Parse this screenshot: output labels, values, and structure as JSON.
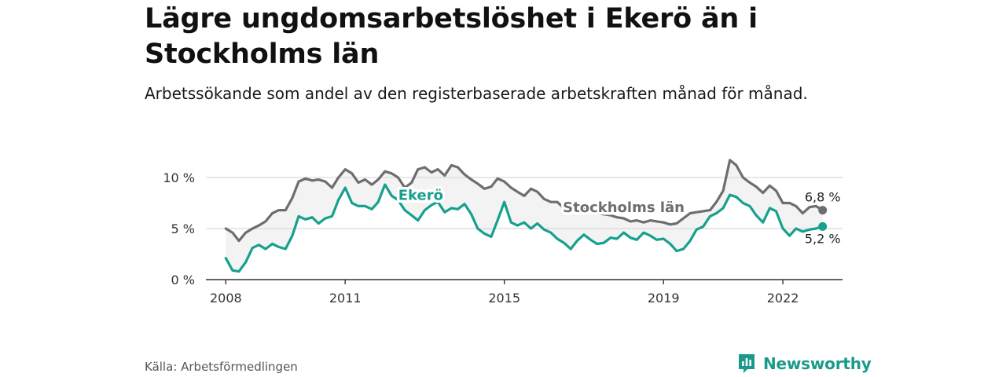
{
  "title": "Lägre ungdomsarbetslöshet i Ekerö än i Stockholms län",
  "subtitle": "Arbetssökande som andel av den registerbaserade arbetskraften månad för månad.",
  "source": "Källa: Arbetsförmedlingen",
  "brand": "Newsworthy",
  "colors": {
    "ekero": "#17a08e",
    "stockholm": "#6d6d72",
    "band": "#f3f3f3",
    "grid": "#d9d9d9",
    "axis": "#333333",
    "brand": "#1a9a8b"
  },
  "chart_data": {
    "type": "line",
    "title": "Lägre ungdomsarbetslöshet i Ekerö än i Stockholms län",
    "xlabel": "",
    "ylabel": "",
    "x_range": [
      2007.5,
      2023.5
    ],
    "ylim": [
      0,
      12
    ],
    "y_ticks": [
      {
        "value": 0,
        "label": "0 %"
      },
      {
        "value": 5,
        "label": "5 %"
      },
      {
        "value": 10,
        "label": "10 %"
      }
    ],
    "x_ticks": [
      {
        "value": 2008,
        "label": "2008"
      },
      {
        "value": 2011,
        "label": "2011"
      },
      {
        "value": 2015,
        "label": "2015"
      },
      {
        "value": 2019,
        "label": "2019"
      },
      {
        "value": 2022,
        "label": "2022"
      }
    ],
    "series": [
      {
        "name": "Stockholms län",
        "color_key": "stockholm",
        "end_label": "6,8 %",
        "points": [
          [
            2008.0,
            5.0
          ],
          [
            2008.17,
            4.6
          ],
          [
            2008.33,
            3.8
          ],
          [
            2008.5,
            4.6
          ],
          [
            2008.67,
            5.0
          ],
          [
            2008.83,
            5.3
          ],
          [
            2009.0,
            5.7
          ],
          [
            2009.17,
            6.5
          ],
          [
            2009.33,
            6.8
          ],
          [
            2009.5,
            6.8
          ],
          [
            2009.67,
            8.0
          ],
          [
            2009.83,
            9.6
          ],
          [
            2010.0,
            9.9
          ],
          [
            2010.17,
            9.7
          ],
          [
            2010.33,
            9.8
          ],
          [
            2010.5,
            9.6
          ],
          [
            2010.67,
            9.0
          ],
          [
            2010.83,
            10.0
          ],
          [
            2011.0,
            10.8
          ],
          [
            2011.17,
            10.4
          ],
          [
            2011.33,
            9.5
          ],
          [
            2011.5,
            9.8
          ],
          [
            2011.67,
            9.3
          ],
          [
            2011.83,
            9.8
          ],
          [
            2012.0,
            10.6
          ],
          [
            2012.17,
            10.4
          ],
          [
            2012.33,
            10.0
          ],
          [
            2012.5,
            9.0
          ],
          [
            2012.67,
            9.5
          ],
          [
            2012.83,
            10.8
          ],
          [
            2013.0,
            11.0
          ],
          [
            2013.17,
            10.5
          ],
          [
            2013.33,
            10.8
          ],
          [
            2013.5,
            10.2
          ],
          [
            2013.67,
            11.2
          ],
          [
            2013.83,
            11.0
          ],
          [
            2014.0,
            10.3
          ],
          [
            2014.17,
            9.8
          ],
          [
            2014.33,
            9.4
          ],
          [
            2014.5,
            8.9
          ],
          [
            2014.67,
            9.1
          ],
          [
            2014.83,
            9.9
          ],
          [
            2015.0,
            9.6
          ],
          [
            2015.17,
            9.0
          ],
          [
            2015.33,
            8.6
          ],
          [
            2015.5,
            8.2
          ],
          [
            2015.67,
            8.9
          ],
          [
            2015.83,
            8.6
          ],
          [
            2016.0,
            7.9
          ],
          [
            2016.17,
            7.6
          ],
          [
            2016.33,
            7.6
          ],
          [
            2016.5,
            7.0
          ],
          [
            2016.67,
            6.7
          ],
          [
            2016.83,
            6.8
          ],
          [
            2017.0,
            6.9
          ],
          [
            2017.17,
            6.7
          ],
          [
            2017.33,
            6.5
          ],
          [
            2017.5,
            6.4
          ],
          [
            2017.67,
            6.3
          ],
          [
            2017.83,
            6.1
          ],
          [
            2018.0,
            6.0
          ],
          [
            2018.17,
            5.7
          ],
          [
            2018.33,
            5.8
          ],
          [
            2018.5,
            5.6
          ],
          [
            2018.67,
            5.8
          ],
          [
            2018.83,
            5.7
          ],
          [
            2019.0,
            5.6
          ],
          [
            2019.17,
            5.4
          ],
          [
            2019.33,
            5.5
          ],
          [
            2019.5,
            6.0
          ],
          [
            2019.67,
            6.5
          ],
          [
            2019.83,
            6.6
          ],
          [
            2020.0,
            6.7
          ],
          [
            2020.17,
            6.8
          ],
          [
            2020.33,
            7.6
          ],
          [
            2020.5,
            8.7
          ],
          [
            2020.67,
            11.7
          ],
          [
            2020.83,
            11.2
          ],
          [
            2021.0,
            10.0
          ],
          [
            2021.17,
            9.5
          ],
          [
            2021.33,
            9.1
          ],
          [
            2021.5,
            8.5
          ],
          [
            2021.67,
            9.2
          ],
          [
            2021.83,
            8.7
          ],
          [
            2022.0,
            7.5
          ],
          [
            2022.17,
            7.5
          ],
          [
            2022.33,
            7.2
          ],
          [
            2022.5,
            6.5
          ],
          [
            2022.67,
            7.1
          ],
          [
            2022.83,
            7.2
          ],
          [
            2023.0,
            6.8
          ]
        ]
      },
      {
        "name": "Ekerö",
        "color_key": "ekero",
        "end_label": "5,2 %",
        "points": [
          [
            2008.0,
            2.1
          ],
          [
            2008.17,
            0.9
          ],
          [
            2008.33,
            0.8
          ],
          [
            2008.5,
            1.7
          ],
          [
            2008.67,
            3.1
          ],
          [
            2008.83,
            3.4
          ],
          [
            2009.0,
            3.0
          ],
          [
            2009.17,
            3.5
          ],
          [
            2009.33,
            3.2
          ],
          [
            2009.5,
            3.0
          ],
          [
            2009.67,
            4.3
          ],
          [
            2009.83,
            6.2
          ],
          [
            2010.0,
            5.9
          ],
          [
            2010.17,
            6.1
          ],
          [
            2010.33,
            5.5
          ],
          [
            2010.5,
            6.0
          ],
          [
            2010.67,
            6.2
          ],
          [
            2010.83,
            7.8
          ],
          [
            2011.0,
            9.0
          ],
          [
            2011.17,
            7.5
          ],
          [
            2011.33,
            7.2
          ],
          [
            2011.5,
            7.2
          ],
          [
            2011.67,
            6.9
          ],
          [
            2011.83,
            7.6
          ],
          [
            2012.0,
            9.3
          ],
          [
            2012.17,
            8.2
          ],
          [
            2012.33,
            7.8
          ],
          [
            2012.5,
            6.8
          ],
          [
            2012.67,
            6.3
          ],
          [
            2012.83,
            5.8
          ],
          [
            2013.0,
            6.8
          ],
          [
            2013.17,
            7.3
          ],
          [
            2013.33,
            7.6
          ],
          [
            2013.5,
            6.6
          ],
          [
            2013.67,
            7.0
          ],
          [
            2013.83,
            6.9
          ],
          [
            2014.0,
            7.4
          ],
          [
            2014.17,
            6.4
          ],
          [
            2014.33,
            5.0
          ],
          [
            2014.5,
            4.5
          ],
          [
            2014.67,
            4.2
          ],
          [
            2014.83,
            5.8
          ],
          [
            2015.0,
            7.6
          ],
          [
            2015.17,
            5.6
          ],
          [
            2015.33,
            5.3
          ],
          [
            2015.5,
            5.6
          ],
          [
            2015.67,
            5.0
          ],
          [
            2015.83,
            5.5
          ],
          [
            2016.0,
            4.9
          ],
          [
            2016.17,
            4.6
          ],
          [
            2016.33,
            4.0
          ],
          [
            2016.5,
            3.6
          ],
          [
            2016.67,
            3.0
          ],
          [
            2016.83,
            3.8
          ],
          [
            2017.0,
            4.4
          ],
          [
            2017.17,
            3.9
          ],
          [
            2017.33,
            3.5
          ],
          [
            2017.5,
            3.6
          ],
          [
            2017.67,
            4.1
          ],
          [
            2017.83,
            4.0
          ],
          [
            2018.0,
            4.6
          ],
          [
            2018.17,
            4.1
          ],
          [
            2018.33,
            3.9
          ],
          [
            2018.5,
            4.6
          ],
          [
            2018.67,
            4.3
          ],
          [
            2018.83,
            3.9
          ],
          [
            2019.0,
            4.0
          ],
          [
            2019.17,
            3.5
          ],
          [
            2019.33,
            2.8
          ],
          [
            2019.5,
            3.0
          ],
          [
            2019.67,
            3.8
          ],
          [
            2019.83,
            4.9
          ],
          [
            2020.0,
            5.2
          ],
          [
            2020.17,
            6.2
          ],
          [
            2020.33,
            6.5
          ],
          [
            2020.5,
            7.0
          ],
          [
            2020.67,
            8.3
          ],
          [
            2020.83,
            8.1
          ],
          [
            2021.0,
            7.5
          ],
          [
            2021.17,
            7.2
          ],
          [
            2021.33,
            6.3
          ],
          [
            2021.5,
            5.6
          ],
          [
            2021.67,
            7.0
          ],
          [
            2021.83,
            6.7
          ],
          [
            2022.0,
            5.0
          ],
          [
            2022.17,
            4.3
          ],
          [
            2022.33,
            5.0
          ],
          [
            2022.5,
            4.7
          ],
          [
            2022.67,
            4.9
          ],
          [
            2022.83,
            5.0
          ],
          [
            2023.0,
            5.2
          ]
        ]
      }
    ],
    "annotations": [
      {
        "text": "Ekerö",
        "series": "Ekerö",
        "x": 2012.9,
        "y": 7.8
      },
      {
        "text": "Stockholms län",
        "series": "Stockholms län",
        "x": 2018.0,
        "y": 6.6
      }
    ]
  }
}
